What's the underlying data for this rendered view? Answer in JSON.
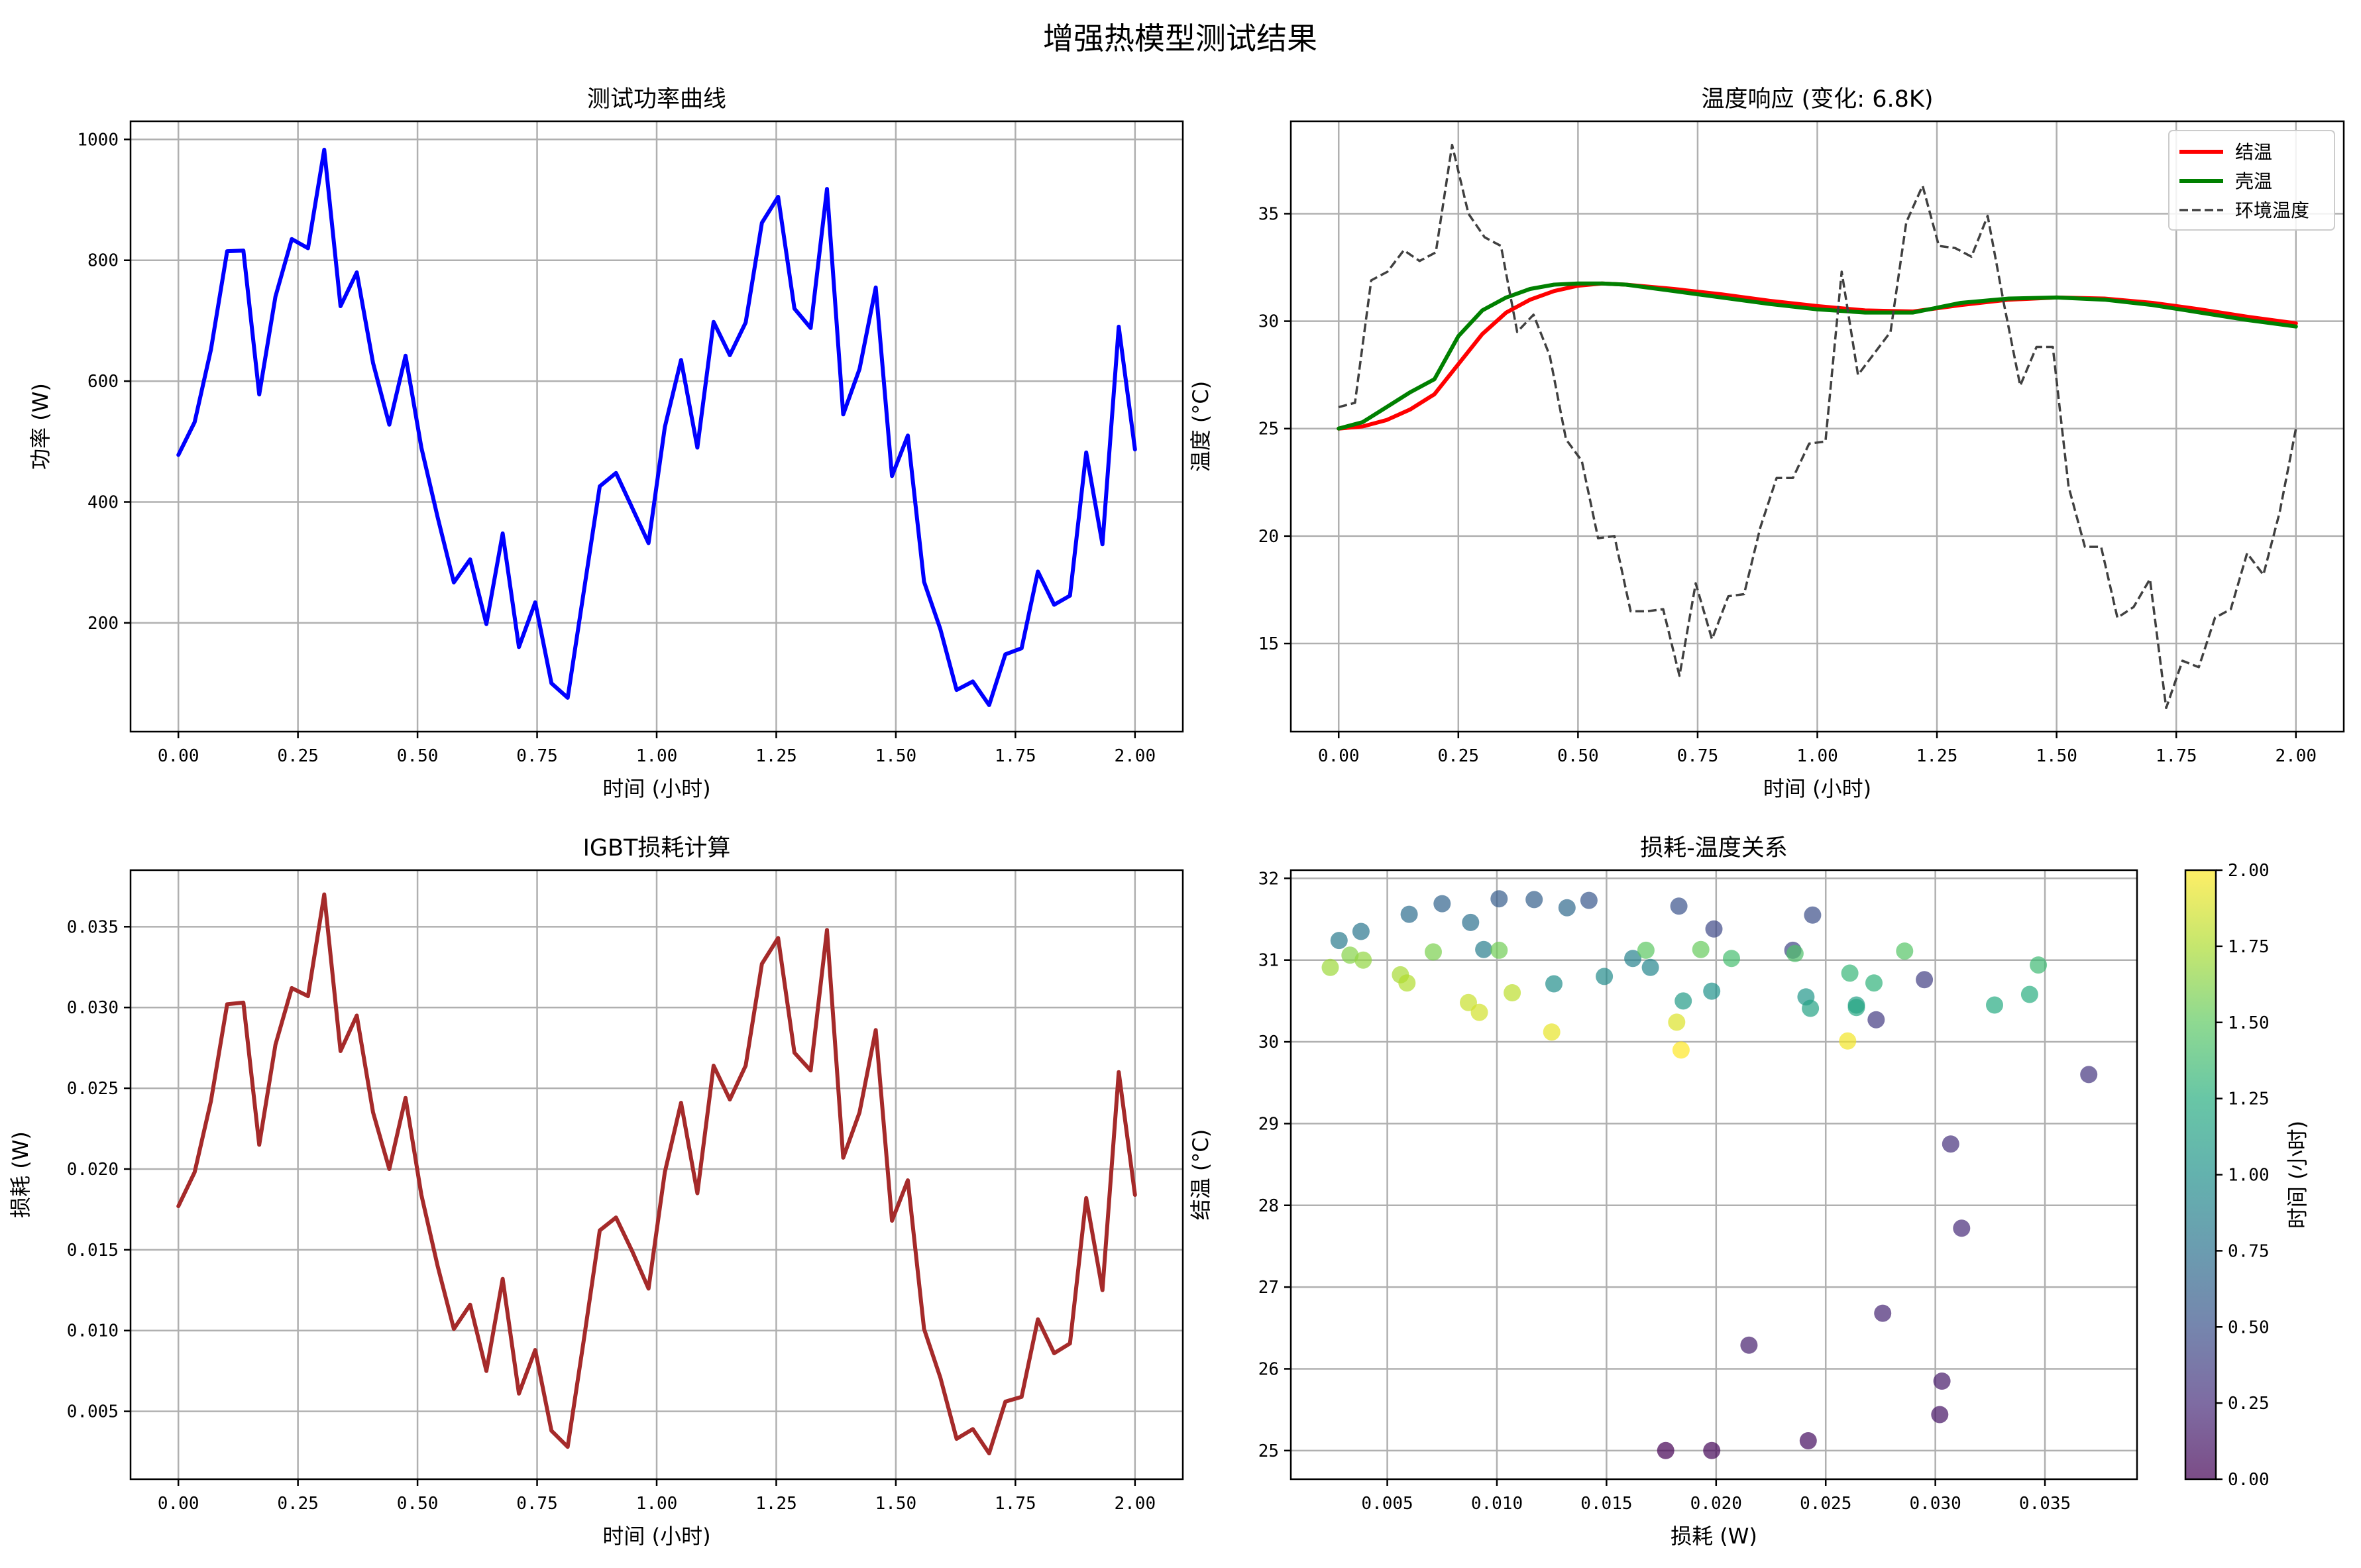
{
  "suptitle": "增强热模型测试结果",
  "chart_data": [
    {
      "type": "line",
      "title": "测试功率曲线",
      "xlabel": "时间 (小时)",
      "ylabel": "功率 (W)",
      "xlim": [
        -0.1,
        2.1
      ],
      "ylim": [
        20,
        1030
      ],
      "xticks": [
        0,
        0.25,
        0.5,
        0.75,
        1.0,
        1.25,
        1.5,
        1.75,
        2.0
      ],
      "xtick_labels": [
        "0.00",
        "0.25",
        "0.50",
        "0.75",
        "1.00",
        "1.25",
        "1.50",
        "1.75",
        "2.00"
      ],
      "yticks": [
        200,
        400,
        600,
        800,
        1000
      ],
      "ytick_labels": [
        "200",
        "400",
        "600",
        "800",
        "1000"
      ],
      "grid": true,
      "series": [
        {
          "color": "#0000ff",
          "x": [
            0.0,
            0.034,
            0.068,
            0.102,
            0.136,
            0.169,
            0.203,
            0.237,
            0.271,
            0.305,
            0.339,
            0.373,
            0.407,
            0.441,
            0.475,
            0.508,
            0.542,
            0.576,
            0.61,
            0.644,
            0.678,
            0.712,
            0.746,
            0.78,
            0.814,
            0.847,
            0.881,
            0.915,
            0.949,
            0.983,
            1.017,
            1.051,
            1.085,
            1.119,
            1.153,
            1.186,
            1.22,
            1.254,
            1.288,
            1.322,
            1.356,
            1.39,
            1.424,
            1.458,
            1.492,
            1.525,
            1.559,
            1.593,
            1.627,
            1.661,
            1.695,
            1.729,
            1.763,
            1.797,
            1.831,
            1.864,
            1.898,
            1.932,
            1.966,
            2.0
          ],
          "y": [
            478,
            532,
            652,
            815,
            816,
            578,
            740,
            835,
            820,
            983,
            724,
            780,
            630,
            528,
            642,
            490,
            375,
            267,
            305,
            198,
            348,
            160,
            234,
            100,
            76,
            249,
            426,
            448,
            390,
            332,
            524,
            635,
            490,
            698,
            643,
            697,
            862,
            905,
            720,
            688,
            918,
            545,
            620,
            755,
            443,
            510,
            268,
            190,
            89,
            103,
            64,
            148,
            158,
            285,
            230,
            245,
            482,
            330,
            690,
            487
          ]
        }
      ]
    },
    {
      "type": "line",
      "title": "温度响应 (变化: 6.8K)",
      "xlabel": "时间 (小时)",
      "ylabel": "温度 (°C)",
      "xlim": [
        -0.1,
        2.1
      ],
      "ylim": [
        10.9,
        39.3
      ],
      "xticks": [
        0,
        0.25,
        0.5,
        0.75,
        1.0,
        1.25,
        1.5,
        1.75,
        2.0
      ],
      "xtick_labels": [
        "0.00",
        "0.25",
        "0.50",
        "0.75",
        "1.00",
        "1.25",
        "1.50",
        "1.75",
        "2.00"
      ],
      "yticks": [
        15,
        20,
        25,
        30,
        35
      ],
      "ytick_labels": [
        "15",
        "20",
        "25",
        "30",
        "35"
      ],
      "grid": true,
      "legend_position": "top-right",
      "series": [
        {
          "name": "结温",
          "color": "#ff0000",
          "style": "solid",
          "x": [
            0.0,
            0.05,
            0.1,
            0.15,
            0.2,
            0.25,
            0.3,
            0.35,
            0.4,
            0.45,
            0.5,
            0.55,
            0.6,
            0.7,
            0.8,
            0.9,
            1.0,
            1.1,
            1.2,
            1.3,
            1.4,
            1.5,
            1.6,
            1.7,
            1.8,
            1.9,
            2.0
          ],
          "y": [
            25.0,
            25.1,
            25.4,
            25.9,
            26.6,
            28.0,
            29.4,
            30.4,
            31.0,
            31.4,
            31.65,
            31.75,
            31.7,
            31.5,
            31.25,
            30.95,
            30.7,
            30.5,
            30.45,
            30.75,
            31.0,
            31.1,
            31.05,
            30.85,
            30.55,
            30.2,
            29.9
          ]
        },
        {
          "name": "壳温",
          "color": "#008000",
          "style": "solid",
          "x": [
            0.0,
            0.05,
            0.1,
            0.15,
            0.2,
            0.25,
            0.3,
            0.35,
            0.4,
            0.45,
            0.5,
            0.55,
            0.6,
            0.7,
            0.8,
            0.9,
            1.0,
            1.1,
            1.2,
            1.3,
            1.4,
            1.5,
            1.6,
            1.7,
            1.8,
            1.9,
            2.0
          ],
          "y": [
            25.0,
            25.3,
            26.0,
            26.7,
            27.3,
            29.3,
            30.5,
            31.1,
            31.5,
            31.7,
            31.75,
            31.75,
            31.7,
            31.4,
            31.1,
            30.8,
            30.55,
            30.4,
            30.4,
            30.85,
            31.05,
            31.1,
            31.0,
            30.75,
            30.4,
            30.05,
            29.75
          ]
        },
        {
          "name": "环境温度",
          "color": "#404040",
          "style": "dashed",
          "x": [
            0.0,
            0.034,
            0.068,
            0.102,
            0.136,
            0.169,
            0.203,
            0.237,
            0.271,
            0.305,
            0.339,
            0.373,
            0.407,
            0.441,
            0.475,
            0.508,
            0.542,
            0.576,
            0.61,
            0.644,
            0.678,
            0.712,
            0.746,
            0.78,
            0.814,
            0.847,
            0.881,
            0.915,
            0.949,
            0.983,
            1.017,
            1.051,
            1.085,
            1.119,
            1.153,
            1.186,
            1.22,
            1.254,
            1.288,
            1.322,
            1.356,
            1.39,
            1.424,
            1.458,
            1.492,
            1.525,
            1.559,
            1.593,
            1.627,
            1.661,
            1.695,
            1.729,
            1.763,
            1.797,
            1.831,
            1.864,
            1.898,
            1.932,
            1.966,
            2.0
          ],
          "y": [
            26.0,
            26.2,
            31.9,
            32.3,
            33.3,
            32.8,
            33.2,
            38.2,
            35.0,
            33.9,
            33.5,
            29.5,
            30.3,
            28.4,
            24.5,
            23.5,
            19.9,
            20.0,
            16.5,
            16.5,
            16.6,
            13.5,
            17.8,
            15.2,
            17.2,
            17.3,
            20.4,
            22.7,
            22.7,
            24.3,
            24.4,
            32.3,
            27.5,
            28.5,
            29.5,
            34.6,
            36.3,
            33.5,
            33.4,
            33.0,
            34.9,
            30.8,
            27.0,
            28.8,
            28.8,
            22.3,
            19.5,
            19.5,
            16.2,
            16.7,
            18.0,
            12.0,
            14.2,
            13.9,
            16.2,
            16.6,
            19.2,
            18.2,
            21.1,
            25.0
          ]
        }
      ]
    },
    {
      "type": "line",
      "title": "IGBT损耗计算",
      "xlabel": "时间 (小时)",
      "ylabel": "损耗 (W)",
      "xlim": [
        -0.1,
        2.1
      ],
      "ylim": [
        0.0008,
        0.0385
      ],
      "xticks": [
        0,
        0.25,
        0.5,
        0.75,
        1.0,
        1.25,
        1.5,
        1.75,
        2.0
      ],
      "xtick_labels": [
        "0.00",
        "0.25",
        "0.50",
        "0.75",
        "1.00",
        "1.25",
        "1.50",
        "1.75",
        "2.00"
      ],
      "yticks": [
        0.005,
        0.01,
        0.015,
        0.02,
        0.025,
        0.03,
        0.035
      ],
      "ytick_labels": [
        "0.005",
        "0.010",
        "0.015",
        "0.020",
        "0.025",
        "0.030",
        "0.035"
      ],
      "grid": true,
      "series": [
        {
          "color": "#a52a2a",
          "x": [
            0.0,
            0.034,
            0.068,
            0.102,
            0.136,
            0.169,
            0.203,
            0.237,
            0.271,
            0.305,
            0.339,
            0.373,
            0.407,
            0.441,
            0.475,
            0.508,
            0.542,
            0.576,
            0.61,
            0.644,
            0.678,
            0.712,
            0.746,
            0.78,
            0.814,
            0.847,
            0.881,
            0.915,
            0.949,
            0.983,
            1.017,
            1.051,
            1.085,
            1.119,
            1.153,
            1.186,
            1.22,
            1.254,
            1.288,
            1.322,
            1.356,
            1.39,
            1.424,
            1.458,
            1.492,
            1.525,
            1.559,
            1.593,
            1.627,
            1.661,
            1.695,
            1.729,
            1.763,
            1.797,
            1.831,
            1.864,
            1.898,
            1.932,
            1.966,
            2.0
          ],
          "y": [
            0.0177,
            0.0198,
            0.0242,
            0.0302,
            0.0303,
            0.0215,
            0.0277,
            0.0312,
            0.0307,
            0.037,
            0.0273,
            0.0295,
            0.0235,
            0.02,
            0.0244,
            0.0184,
            0.014,
            0.0101,
            0.0116,
            0.0075,
            0.0132,
            0.0061,
            0.0088,
            0.0038,
            0.0028,
            0.0093,
            0.0162,
            0.017,
            0.0149,
            0.0126,
            0.0198,
            0.0241,
            0.0185,
            0.0264,
            0.0243,
            0.0264,
            0.0327,
            0.0343,
            0.0272,
            0.0261,
            0.0348,
            0.0207,
            0.0235,
            0.0286,
            0.0168,
            0.0193,
            0.0101,
            0.0071,
            0.0033,
            0.0039,
            0.0024,
            0.0056,
            0.0059,
            0.0107,
            0.0086,
            0.0092,
            0.0182,
            0.0125,
            0.026,
            0.0184
          ]
        }
      ]
    },
    {
      "type": "scatter",
      "title": "损耗-温度关系",
      "xlabel": "损耗 (W)",
      "ylabel": "结温 (°C)",
      "xlim": [
        0.0006,
        0.0392
      ],
      "ylim": [
        24.65,
        32.1
      ],
      "xticks": [
        0.005,
        0.01,
        0.015,
        0.02,
        0.025,
        0.03,
        0.035
      ],
      "xtick_labels": [
        "0.005",
        "0.010",
        "0.015",
        "0.020",
        "0.025",
        "0.030",
        "0.035"
      ],
      "yticks": [
        25,
        26,
        27,
        28,
        29,
        30,
        31,
        32
      ],
      "ytick_labels": [
        "25",
        "26",
        "27",
        "28",
        "29",
        "30",
        "31",
        "32"
      ],
      "grid": true,
      "colorbar": {
        "label": "时间 (小时)",
        "colormap": "viridis",
        "range": [
          0.0,
          2.0
        ],
        "ticks": [
          0.0,
          0.25,
          0.5,
          0.75,
          1.0,
          1.25,
          1.5,
          1.75,
          2.0
        ],
        "tick_labels": [
          "0.00",
          "0.25",
          "0.50",
          "0.75",
          "1.00",
          "1.25",
          "1.50",
          "1.75",
          "2.00"
        ]
      },
      "points": [
        {
          "x": 0.0177,
          "y": 25.0,
          "t": 0.0
        },
        {
          "x": 0.0198,
          "y": 25.0,
          "t": 0.034
        },
        {
          "x": 0.0242,
          "y": 25.12,
          "t": 0.068
        },
        {
          "x": 0.0302,
          "y": 25.44,
          "t": 0.102
        },
        {
          "x": 0.0303,
          "y": 25.85,
          "t": 0.136
        },
        {
          "x": 0.0215,
          "y": 26.29,
          "t": 0.169
        },
        {
          "x": 0.0276,
          "y": 26.68,
          "t": 0.203
        },
        {
          "x": 0.0312,
          "y": 27.72,
          "t": 0.237
        },
        {
          "x": 0.0307,
          "y": 28.75,
          "t": 0.271
        },
        {
          "x": 0.037,
          "y": 29.6,
          "t": 0.305
        },
        {
          "x": 0.0273,
          "y": 30.27,
          "t": 0.339
        },
        {
          "x": 0.0295,
          "y": 30.76,
          "t": 0.373
        },
        {
          "x": 0.0235,
          "y": 31.12,
          "t": 0.407
        },
        {
          "x": 0.0199,
          "y": 31.38,
          "t": 0.441
        },
        {
          "x": 0.0244,
          "y": 31.55,
          "t": 0.475
        },
        {
          "x": 0.0183,
          "y": 31.66,
          "t": 0.508
        },
        {
          "x": 0.0142,
          "y": 31.73,
          "t": 0.542
        },
        {
          "x": 0.0101,
          "y": 31.75,
          "t": 0.576
        },
        {
          "x": 0.0117,
          "y": 31.74,
          "t": 0.61
        },
        {
          "x": 0.0075,
          "y": 31.69,
          "t": 0.644
        },
        {
          "x": 0.0132,
          "y": 31.64,
          "t": 0.678
        },
        {
          "x": 0.006,
          "y": 31.56,
          "t": 0.712
        },
        {
          "x": 0.0088,
          "y": 31.46,
          "t": 0.746
        },
        {
          "x": 0.0038,
          "y": 31.35,
          "t": 0.78
        },
        {
          "x": 0.0028,
          "y": 31.24,
          "t": 0.814
        },
        {
          "x": 0.0094,
          "y": 31.13,
          "t": 0.847
        },
        {
          "x": 0.0162,
          "y": 31.02,
          "t": 0.881
        },
        {
          "x": 0.017,
          "y": 30.91,
          "t": 0.915
        },
        {
          "x": 0.0149,
          "y": 30.8,
          "t": 0.949
        },
        {
          "x": 0.0126,
          "y": 30.71,
          "t": 0.983
        },
        {
          "x": 0.0198,
          "y": 30.62,
          "t": 1.017
        },
        {
          "x": 0.0241,
          "y": 30.55,
          "t": 1.051
        },
        {
          "x": 0.0185,
          "y": 30.5,
          "t": 1.085
        },
        {
          "x": 0.0264,
          "y": 30.45,
          "t": 1.119
        },
        {
          "x": 0.0243,
          "y": 30.41,
          "t": 1.153
        },
        {
          "x": 0.0264,
          "y": 30.42,
          "t": 1.186
        },
        {
          "x": 0.0327,
          "y": 30.45,
          "t": 1.22
        },
        {
          "x": 0.0343,
          "y": 30.58,
          "t": 1.254
        },
        {
          "x": 0.0272,
          "y": 30.72,
          "t": 1.288
        },
        {
          "x": 0.0261,
          "y": 30.84,
          "t": 1.322
        },
        {
          "x": 0.0347,
          "y": 30.94,
          "t": 1.356
        },
        {
          "x": 0.0207,
          "y": 31.02,
          "t": 1.39
        },
        {
          "x": 0.0236,
          "y": 31.08,
          "t": 1.424
        },
        {
          "x": 0.0286,
          "y": 31.11,
          "t": 1.458
        },
        {
          "x": 0.0168,
          "y": 31.12,
          "t": 1.492
        },
        {
          "x": 0.0193,
          "y": 31.13,
          "t": 1.525
        },
        {
          "x": 0.0101,
          "y": 31.12,
          "t": 1.559
        },
        {
          "x": 0.0071,
          "y": 31.1,
          "t": 1.593
        },
        {
          "x": 0.0033,
          "y": 31.06,
          "t": 1.627
        },
        {
          "x": 0.0039,
          "y": 31.0,
          "t": 1.661
        },
        {
          "x": 0.0024,
          "y": 30.91,
          "t": 1.695
        },
        {
          "x": 0.0056,
          "y": 30.82,
          "t": 1.729
        },
        {
          "x": 0.0059,
          "y": 30.72,
          "t": 1.763
        },
        {
          "x": 0.0107,
          "y": 30.6,
          "t": 1.797
        },
        {
          "x": 0.0087,
          "y": 30.48,
          "t": 1.831
        },
        {
          "x": 0.0092,
          "y": 30.36,
          "t": 1.864
        },
        {
          "x": 0.0182,
          "y": 30.24,
          "t": 1.898
        },
        {
          "x": 0.0125,
          "y": 30.12,
          "t": 1.932
        },
        {
          "x": 0.026,
          "y": 30.01,
          "t": 1.966
        },
        {
          "x": 0.0184,
          "y": 29.9,
          "t": 2.0
        }
      ]
    }
  ]
}
